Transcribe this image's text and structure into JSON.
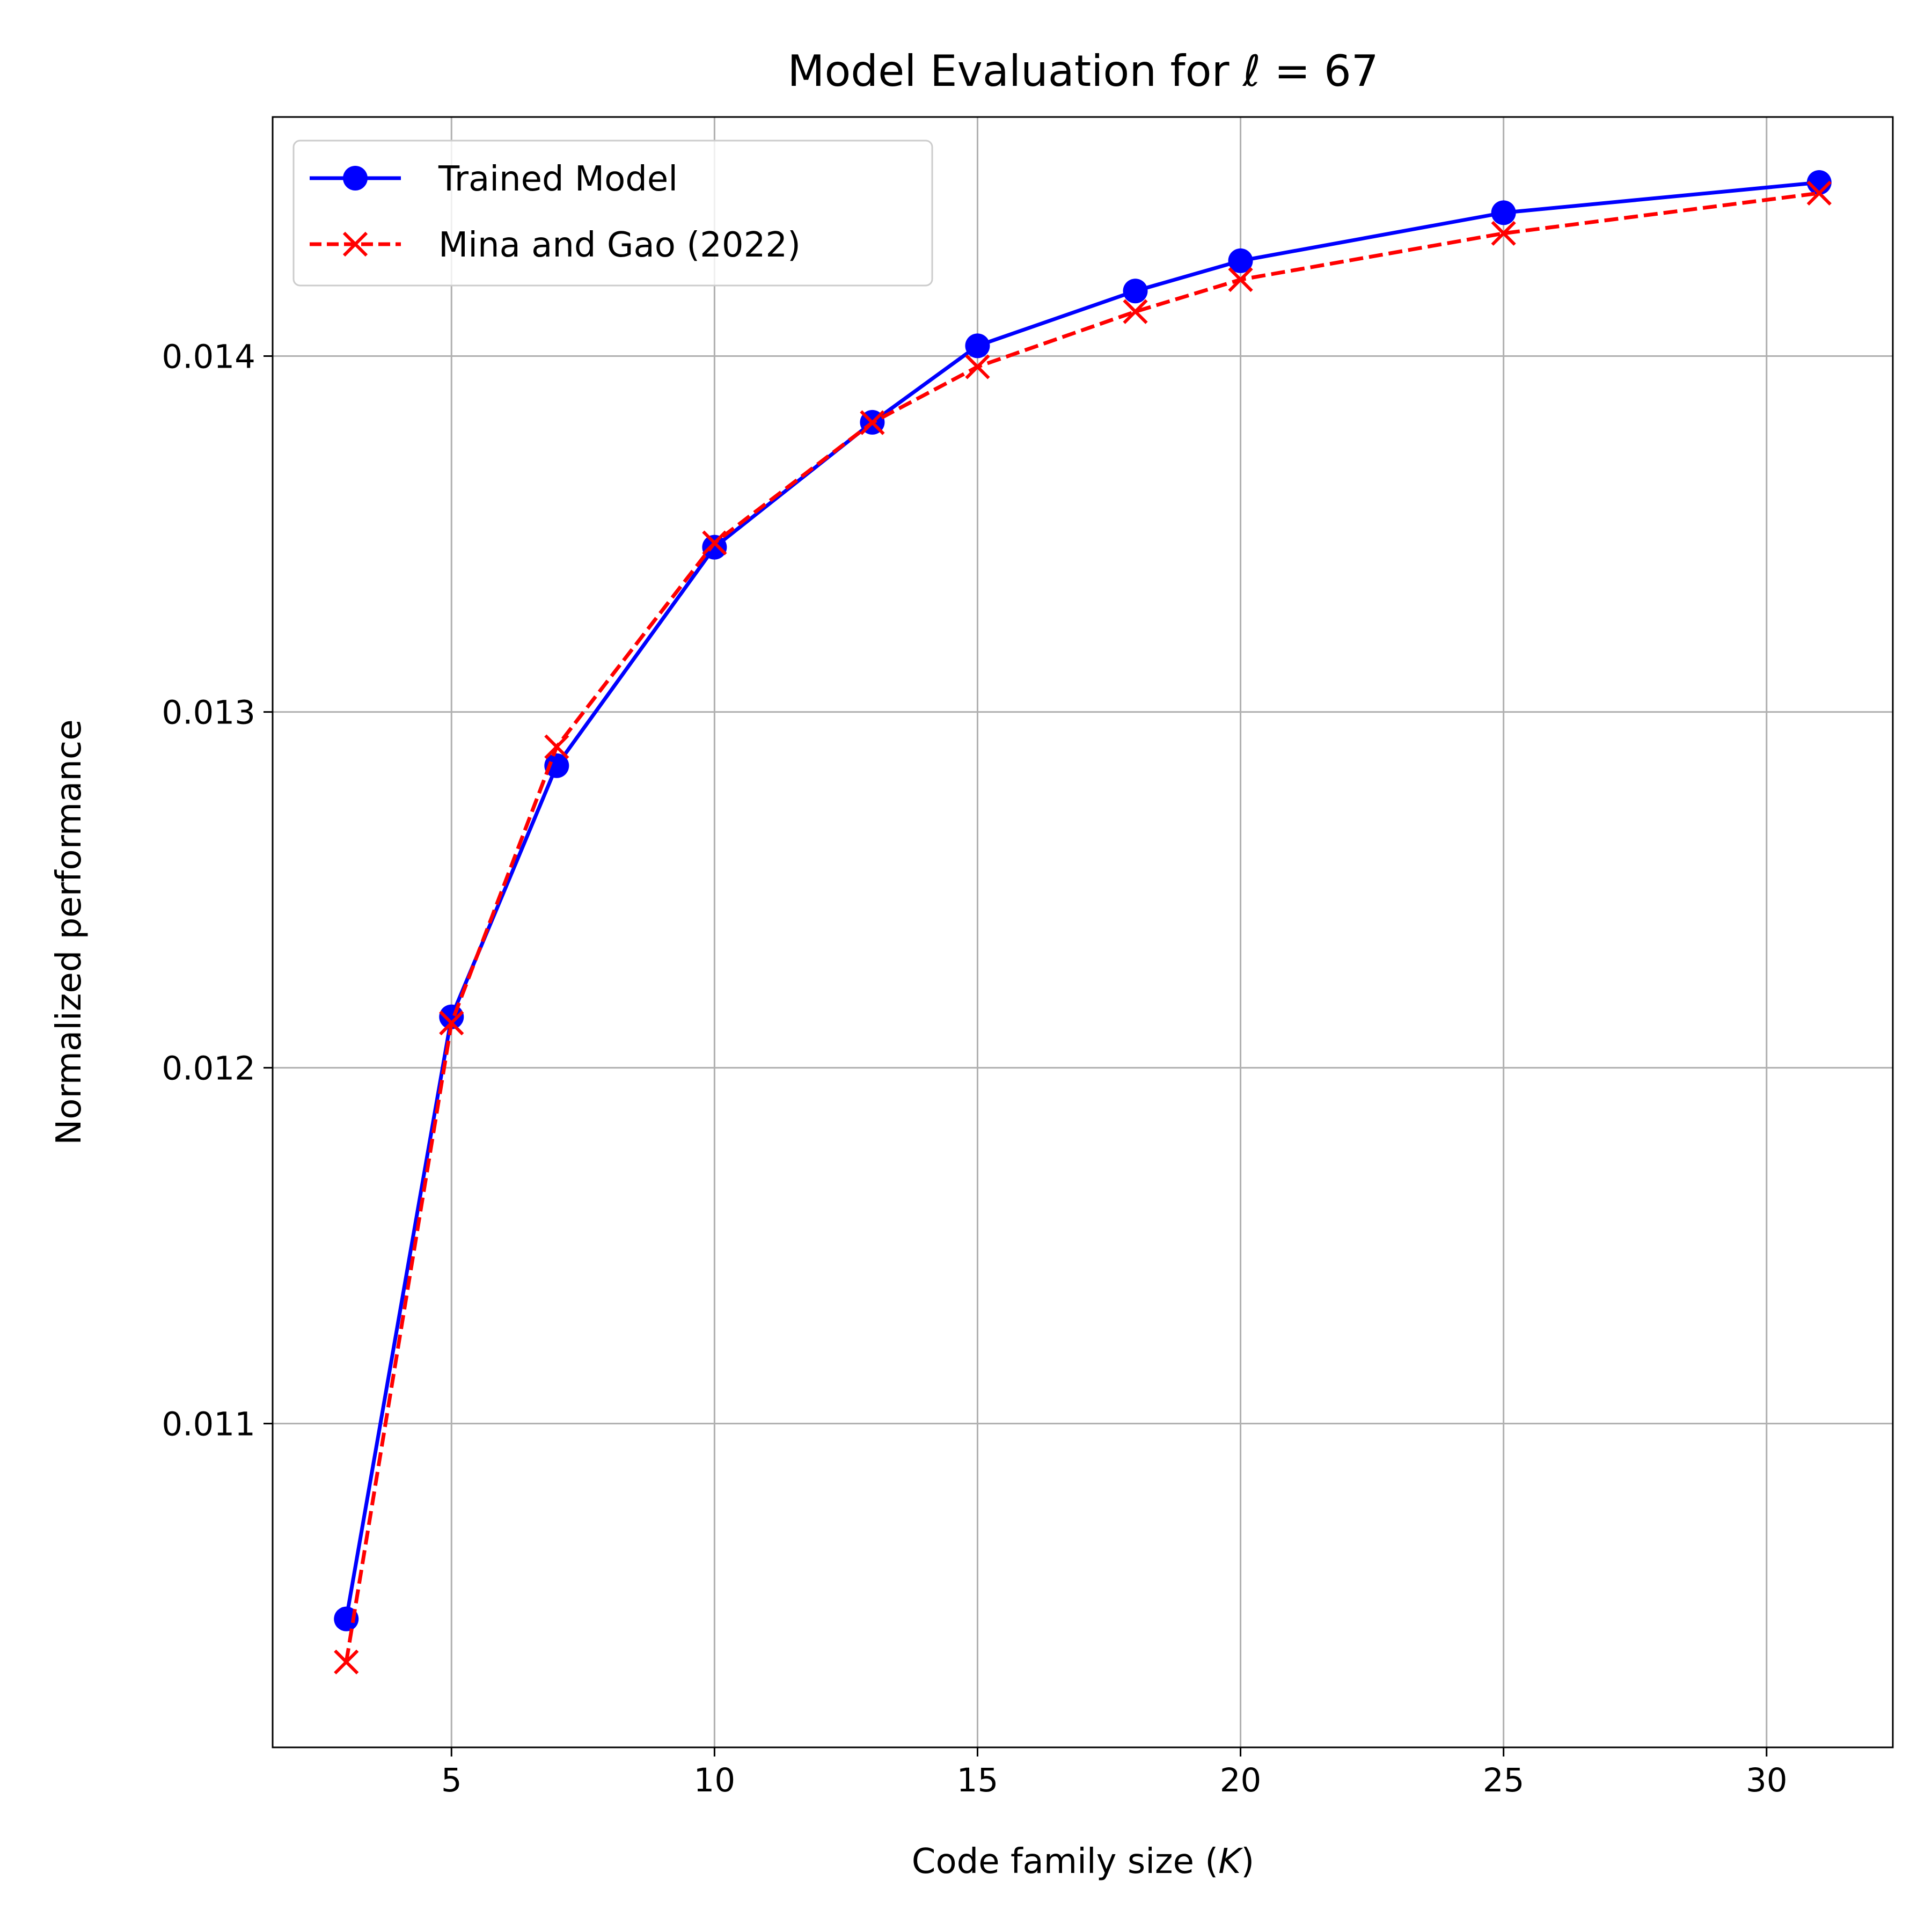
{
  "chart_data": {
    "type": "line",
    "title_prefix": "Model Evaluation for ",
    "title_symbol": "ℓ",
    "title_suffix": " = 67",
    "xlabel_prefix": "Code family size (",
    "xlabel_symbol": "K",
    "xlabel_suffix": ")",
    "ylabel": "Normalized performance",
    "x_ticks": [
      "5",
      "10",
      "15",
      "20",
      "25",
      "30"
    ],
    "y_ticks": [
      "0.011",
      "0.012",
      "0.013",
      "0.014"
    ],
    "xlim": [
      1.6,
      32.4
    ],
    "ylim": [
      0.01009,
      0.014672
    ],
    "grid": true,
    "legend_position": "top-left",
    "series": [
      {
        "name": "Trained Model",
        "color": "#0000ff",
        "line_style": "solid",
        "marker": "circle",
        "x": [
          3,
          5,
          7,
          10,
          13,
          15,
          18,
          20,
          25,
          31
        ],
        "y": [
          0.010451,
          0.012143,
          0.012849,
          0.013463,
          0.013814,
          0.014029,
          0.014183,
          0.014268,
          0.014403,
          0.014488
        ]
      },
      {
        "name": "Mina and Gao (2022)",
        "color": "#ff0000",
        "line_style": "dashed",
        "marker": "x",
        "x": [
          3,
          5,
          7,
          10,
          13,
          15,
          18,
          20,
          25,
          31
        ],
        "y": [
          0.01033,
          0.012126,
          0.012902,
          0.013475,
          0.013813,
          0.01397,
          0.014125,
          0.014215,
          0.014345,
          0.014458
        ]
      }
    ]
  }
}
